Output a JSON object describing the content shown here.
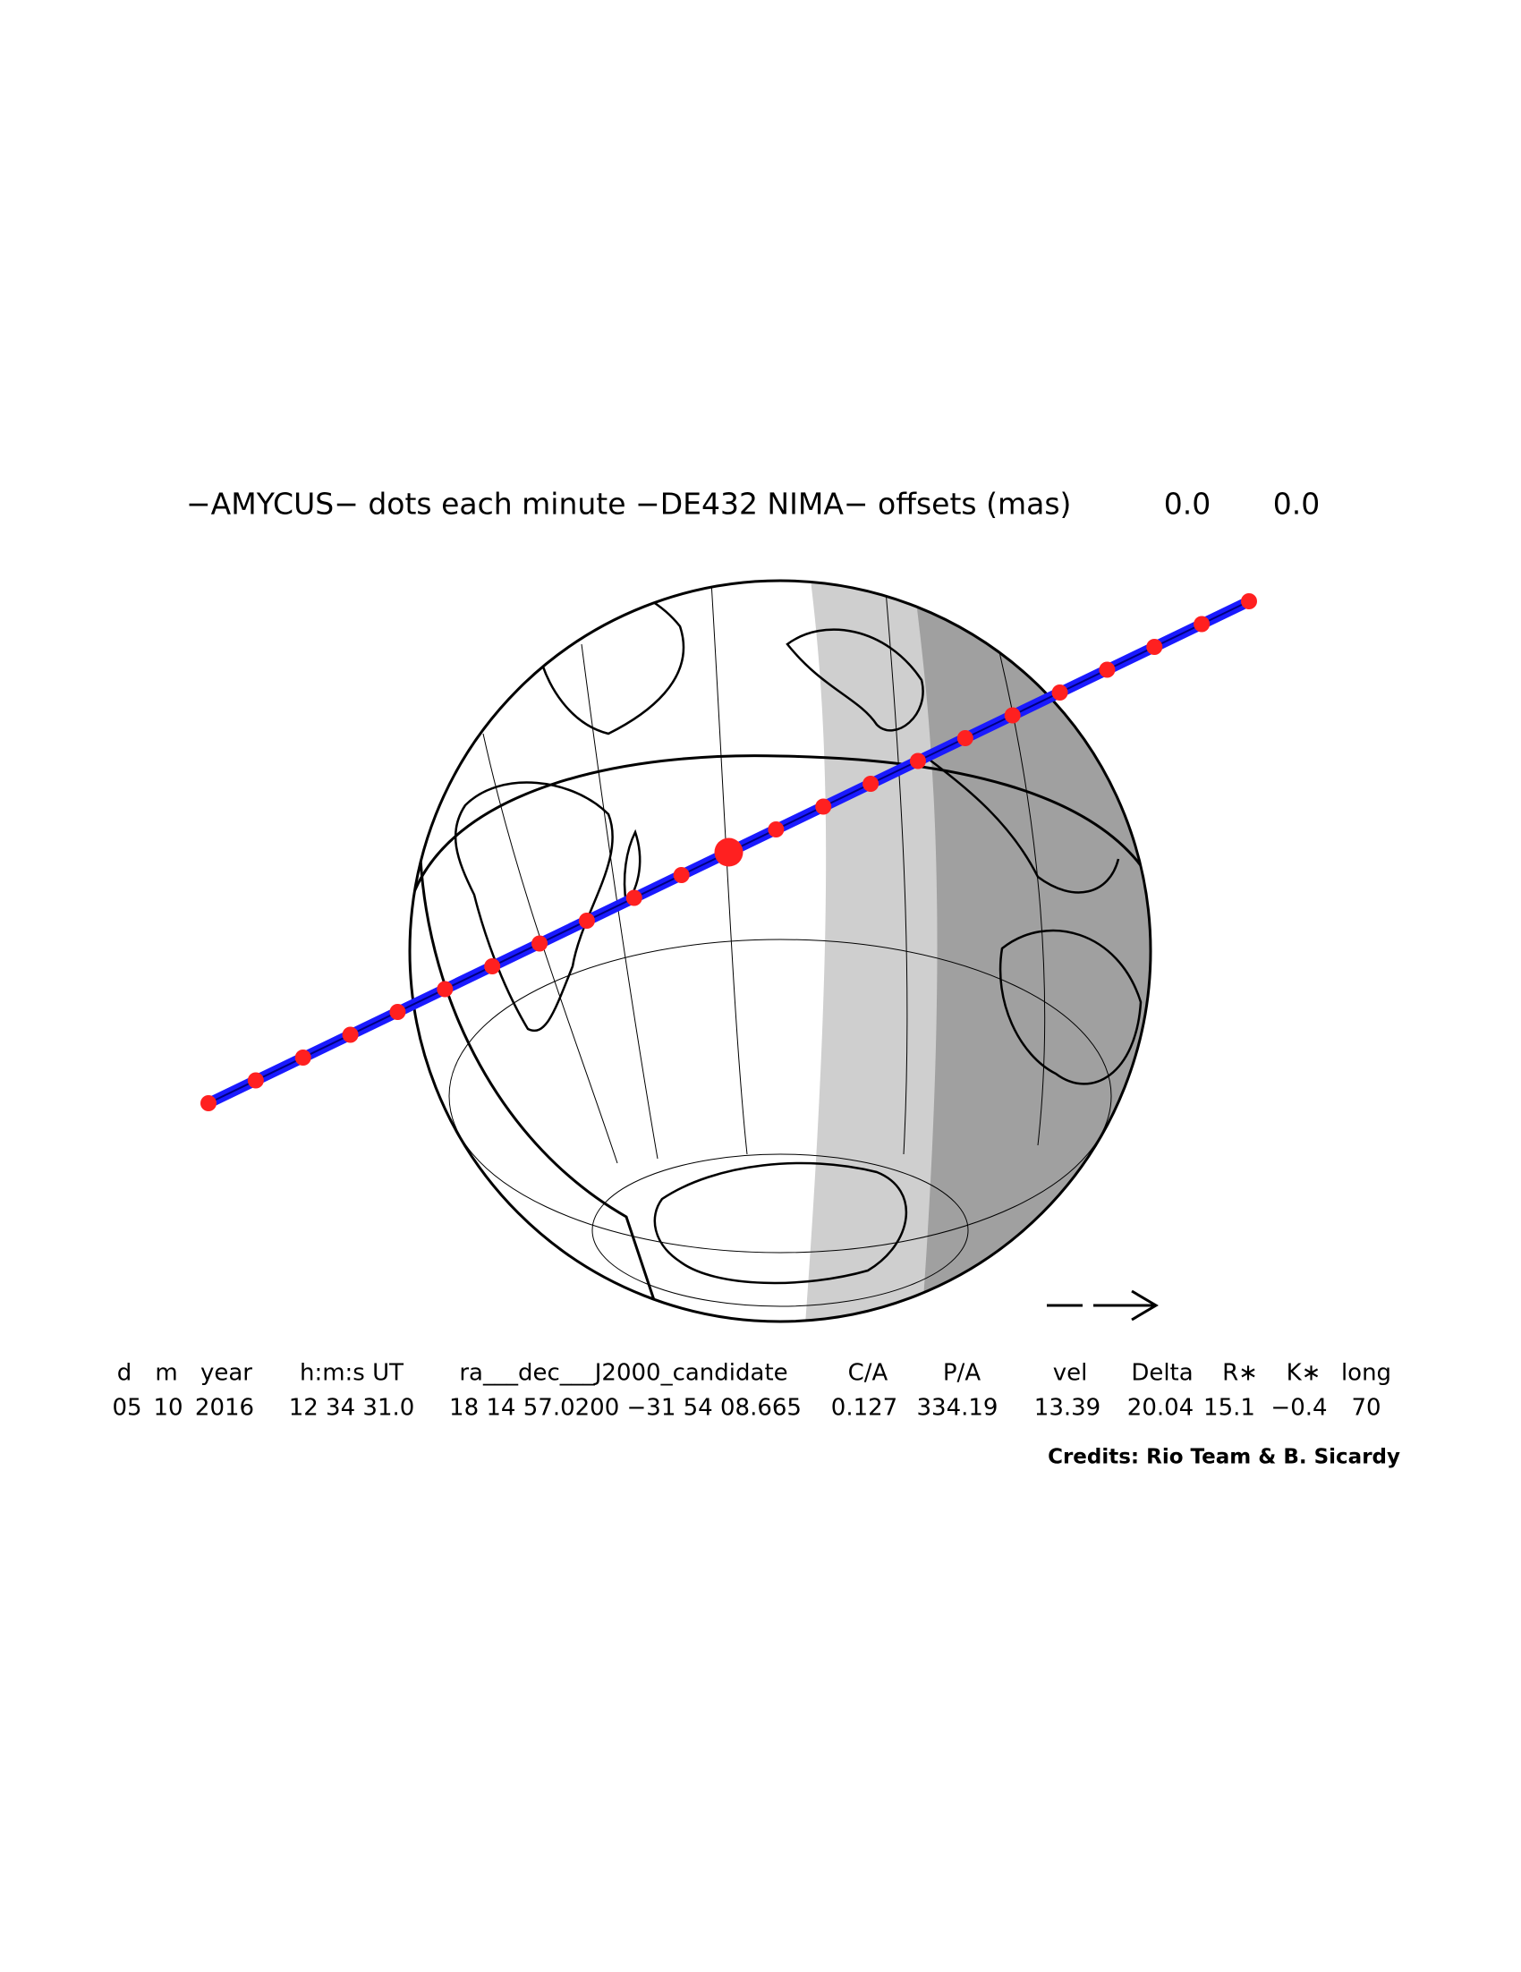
{
  "header": {
    "title": "−AMYCUS− dots each minute −DE432 NIMA− offsets (mas)",
    "offsets": [
      "0.0",
      "0.0"
    ]
  },
  "table": {
    "headers": [
      "d",
      "m",
      "year",
      "h:m:s UT",
      "ra___dec___J2000_candidate",
      "C/A",
      "P/A",
      "vel",
      "Delta",
      "R∗",
      "K∗",
      "long"
    ],
    "values": [
      "05",
      "10",
      "2016",
      "12 34 31.0",
      "18 14 57.0200 −31 54 08.665",
      "0.127",
      "334.19",
      "13.39",
      "20.04",
      "15.1",
      "−0.4",
      "70"
    ]
  },
  "credits": "Credits: Rio Team & B. Sicardy"
}
